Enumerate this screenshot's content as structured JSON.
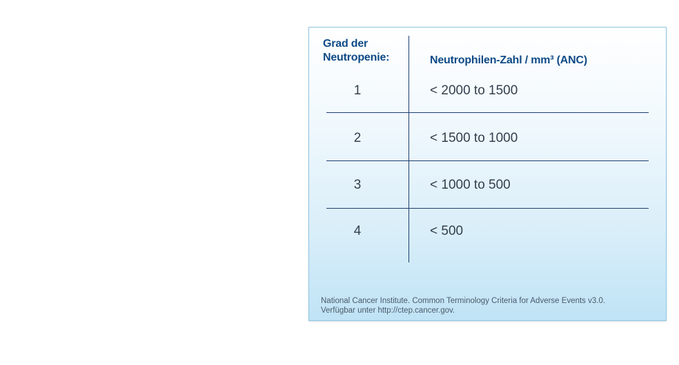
{
  "table": {
    "header_grade": "Grad der Neutropenie:",
    "header_anc": "Neutrophilen-Zahl / mm³ (ANC)",
    "rows": [
      {
        "grade": "1",
        "anc": "< 2000 to 1500"
      },
      {
        "grade": "2",
        "anc": "< 1500 to 1000"
      },
      {
        "grade": "3",
        "anc": "< 1000 to 500"
      },
      {
        "grade": "4",
        "anc": "< 500"
      }
    ]
  },
  "footnote": {
    "line1": "National Cancer Institute. Common Terminology Criteria for Adverse Events v3.0.",
    "line2": "Verfügbar unter http://ctep.cancer.gov."
  }
}
